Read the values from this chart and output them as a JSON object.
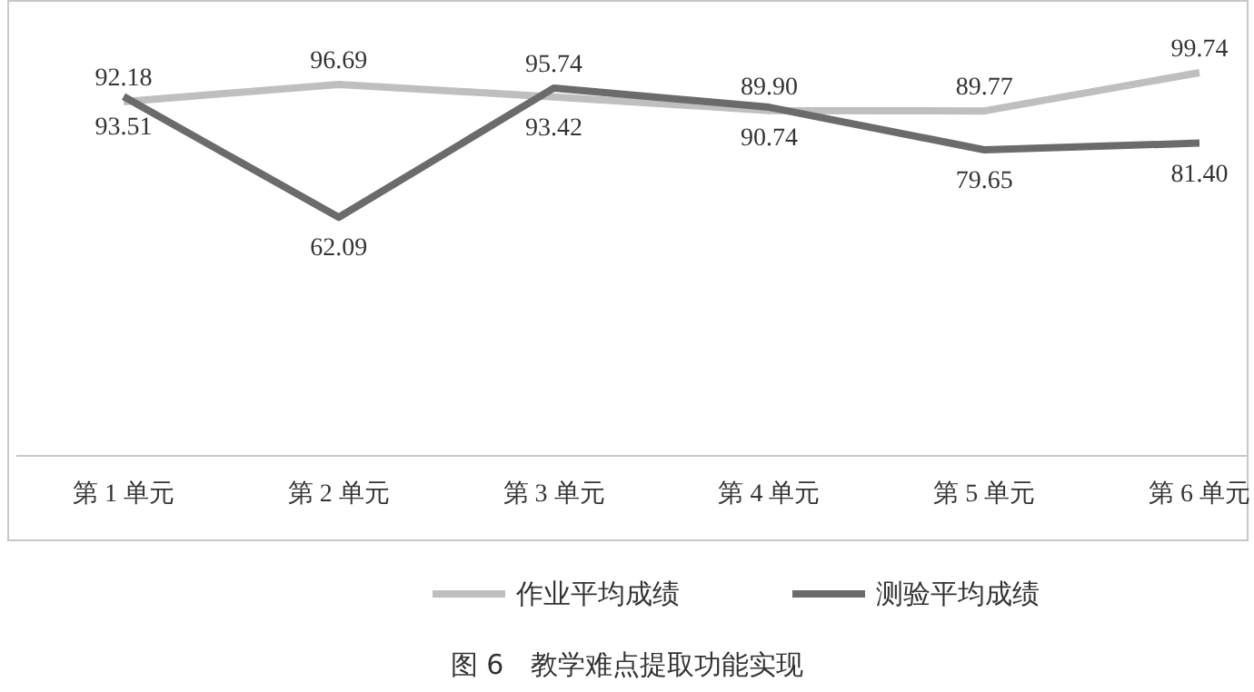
{
  "chart_data": {
    "type": "line",
    "categories": [
      "第 1 单元",
      "第 2 单元",
      "第 3 单元",
      "第 4 单元",
      "第 5 单元",
      "第 6 单元"
    ],
    "series": [
      {
        "name": "作业平均成绩",
        "color": "#bfbfbf",
        "values": [
          92.18,
          96.69,
          93.42,
          89.9,
          89.77,
          99.74
        ],
        "value_labels": [
          "92.18",
          "96.69",
          "93.42",
          "89.90",
          "89.77",
          "99.74"
        ]
      },
      {
        "name": "测验平均成绩",
        "color": "#6b6b6b",
        "values": [
          93.51,
          62.09,
          95.74,
          90.74,
          79.65,
          81.4
        ],
        "value_labels": [
          "93.51",
          "62.09",
          "95.74",
          "90.74",
          "79.65",
          "81.40"
        ]
      }
    ],
    "legend": "bottom",
    "marker": "none",
    "line_style": "solid",
    "annotations": [
      "图 6　教学难点提取功能实现"
    ]
  }
}
